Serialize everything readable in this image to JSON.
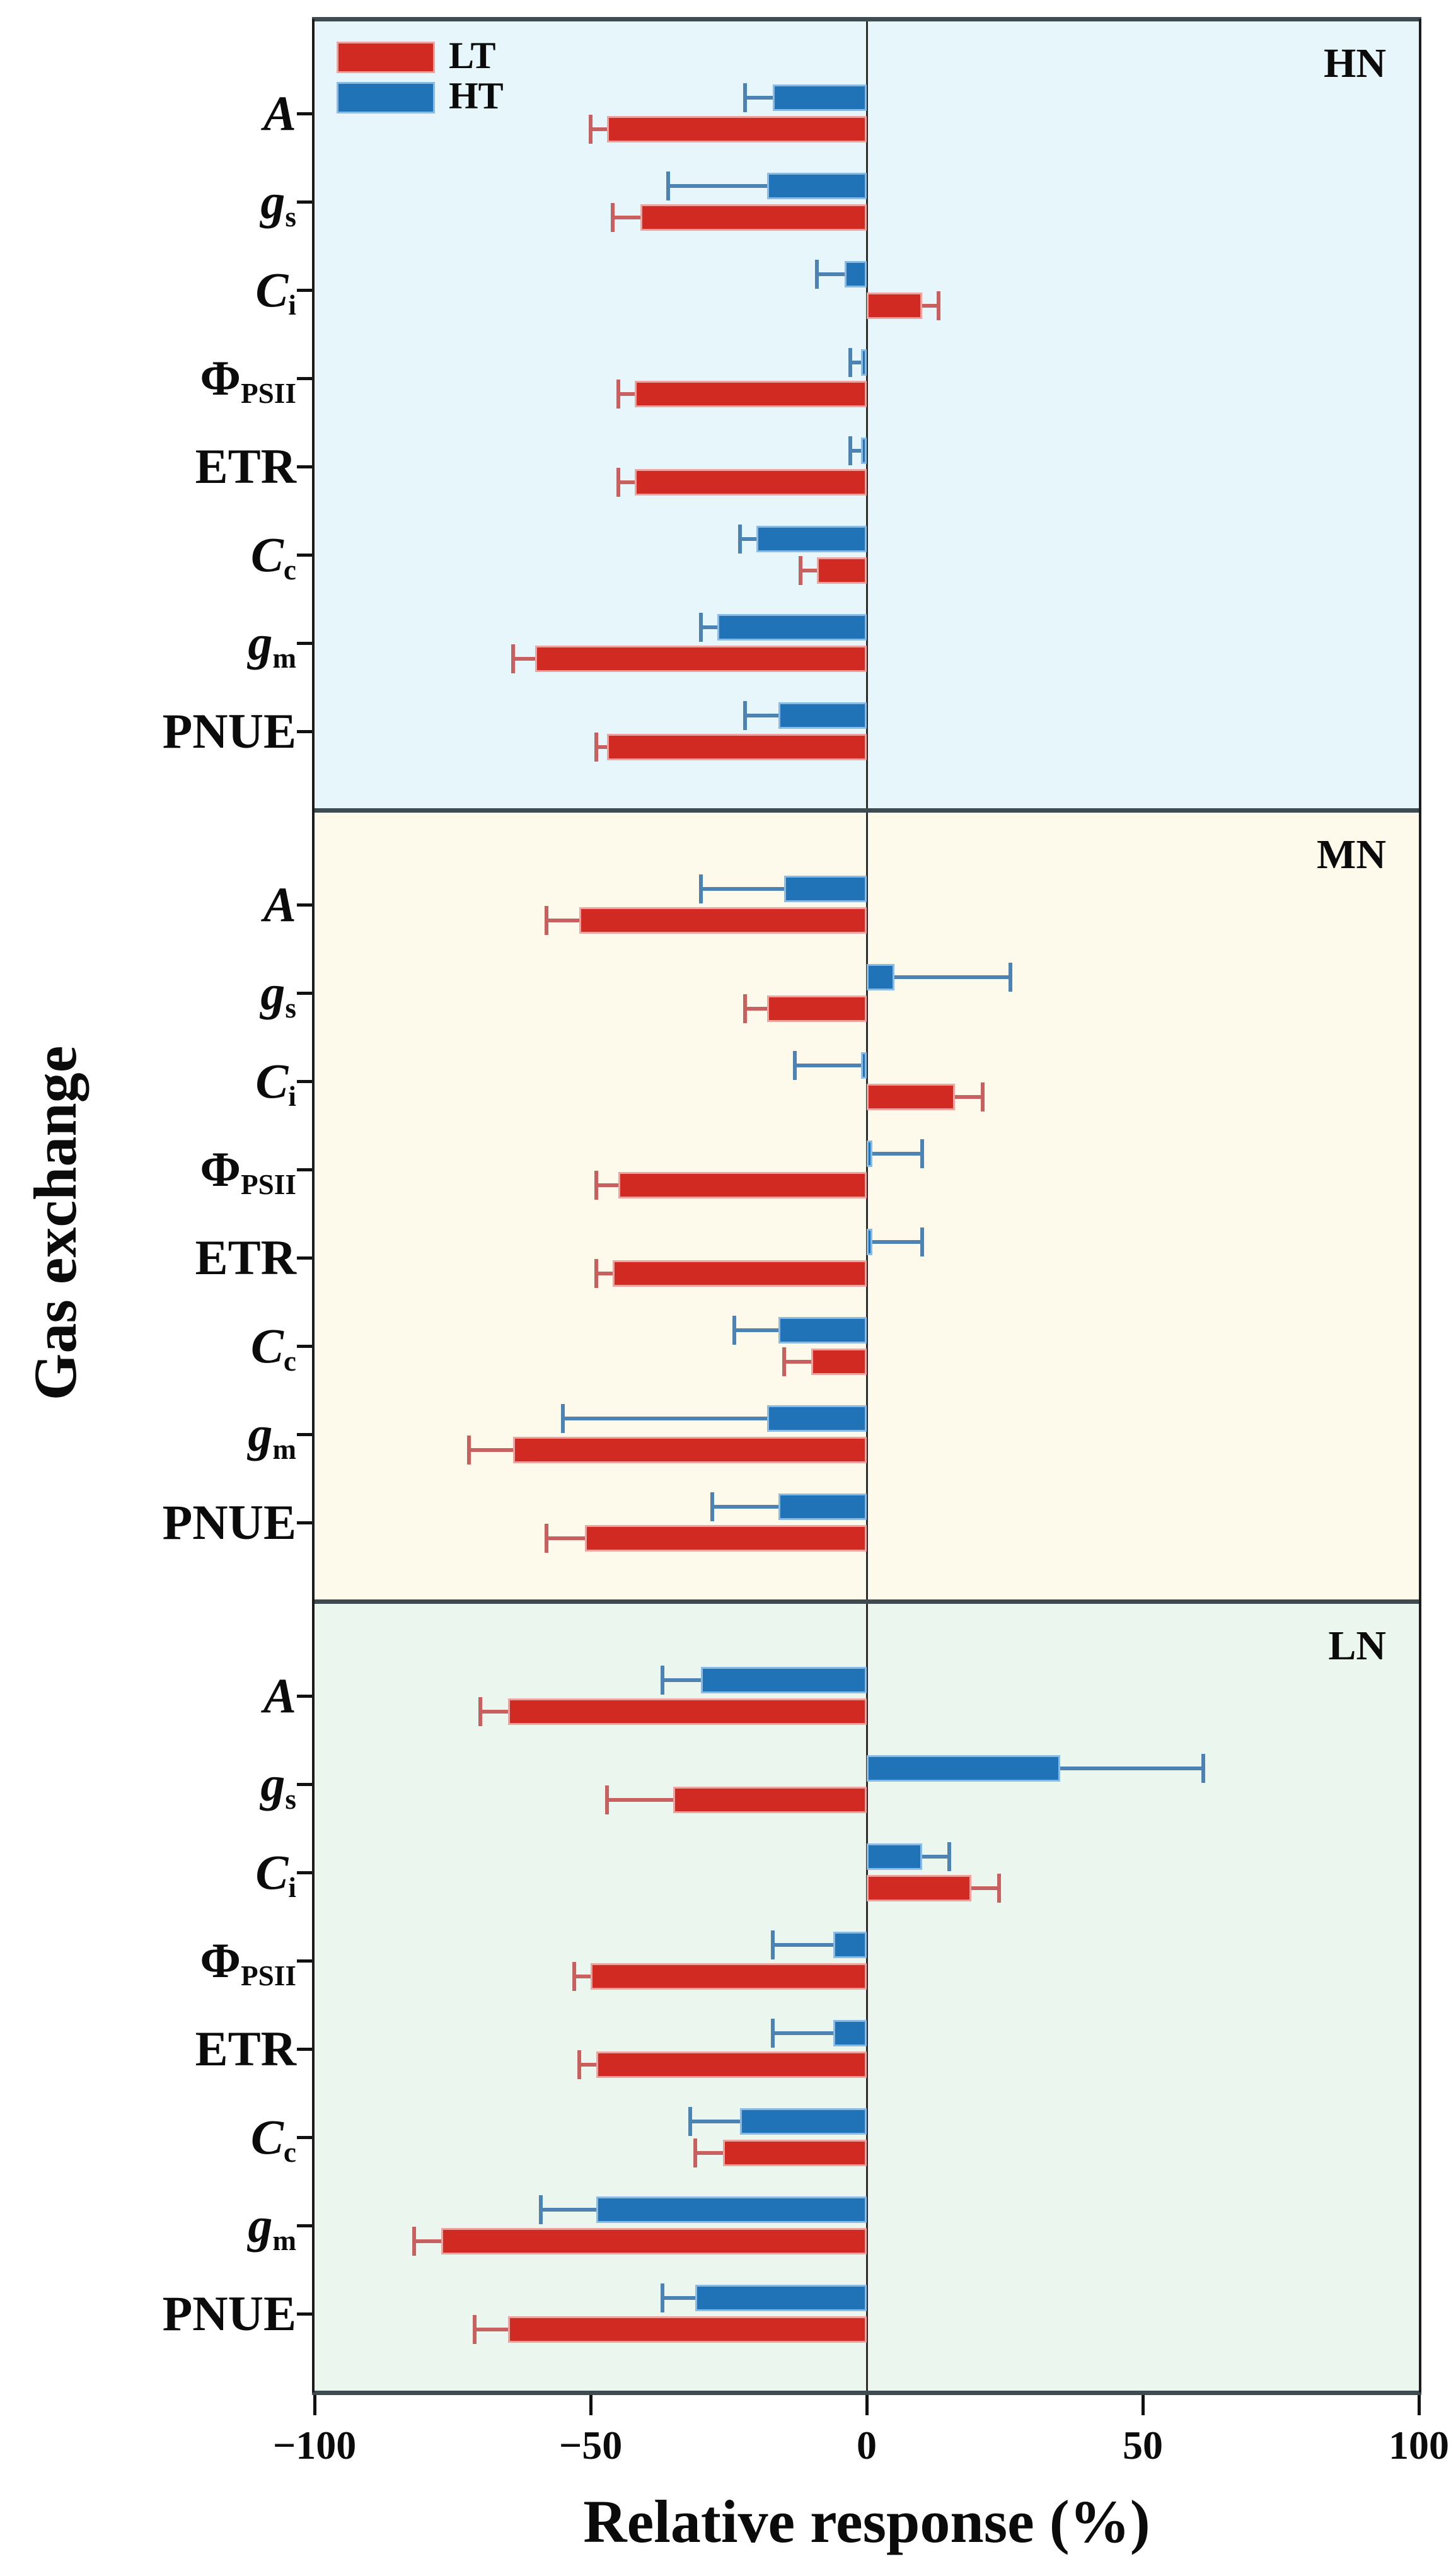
{
  "figure": {
    "x_axis_title": "Relative response (%)",
    "y_axis_title": "Gas exchange"
  },
  "chart_data": {
    "type": "bar",
    "orientation": "horizontal",
    "title": "",
    "xlabel": "Relative response (%)",
    "ylabel": "Gas exchange",
    "xlim": [
      -100,
      100
    ],
    "x_ticks": [
      -100,
      -50,
      0,
      50,
      100
    ],
    "x_tick_labels": [
      "−100",
      "−50",
      "0",
      "50",
      "100"
    ],
    "grid": false,
    "error_bars": "one-sided outward with caps",
    "legend": {
      "position": "top-left-of-first-panel",
      "entries": [
        {
          "label": "LT",
          "color": "#d02a22"
        },
        {
          "label": "HT",
          "color": "#2173b8"
        }
      ]
    },
    "colors": {
      "LT": "#d02a22",
      "HT": "#2173b8",
      "LT_edge": "#f0a29e",
      "HT_edge": "#8abbe4",
      "LT_err": "#c96060",
      "HT_err": "#4d83b2",
      "axis_frame": "#3e4b50",
      "panel_border": "#1c1c1c",
      "zero_line": "#2d2d2d"
    },
    "categories": [
      {
        "key": "A",
        "parts": [
          {
            "text": "A",
            "style": "italic"
          }
        ]
      },
      {
        "key": "gs",
        "parts": [
          {
            "text": "g",
            "style": "italic"
          },
          {
            "text": "s",
            "style": "sub"
          }
        ]
      },
      {
        "key": "Ci",
        "parts": [
          {
            "text": "C",
            "style": "italic"
          },
          {
            "text": "i",
            "style": "sub"
          }
        ]
      },
      {
        "key": "PhiPSII",
        "parts": [
          {
            "text": "Φ",
            "style": "normal"
          },
          {
            "text": "PSII",
            "style": "sub"
          }
        ]
      },
      {
        "key": "ETR",
        "parts": [
          {
            "text": "ETR",
            "style": "normal"
          }
        ]
      },
      {
        "key": "Cc",
        "parts": [
          {
            "text": "C",
            "style": "italic"
          },
          {
            "text": "c",
            "style": "sub"
          }
        ]
      },
      {
        "key": "gm",
        "parts": [
          {
            "text": "g",
            "style": "italic"
          },
          {
            "text": "m",
            "style": "sub"
          }
        ]
      },
      {
        "key": "PNUE",
        "parts": [
          {
            "text": "PNUE",
            "style": "normal"
          }
        ]
      }
    ],
    "panels": [
      {
        "label": "HN",
        "background": "#e7f6fa",
        "series": [
          {
            "name": "LT",
            "values": [
              -47,
              -41,
              10,
              -42,
              -42,
              -9,
              -60,
              -47
            ],
            "errors": [
              3,
              5,
              3,
              3,
              3,
              3,
              4,
              2
            ]
          },
          {
            "name": "HT",
            "values": [
              -17,
              -18,
              -4,
              -1,
              -1,
              -20,
              -27,
              -16
            ],
            "errors": [
              5,
              18,
              5,
              2,
              2,
              3,
              3,
              6
            ]
          }
        ]
      },
      {
        "label": "MN",
        "background": "#fdfaec",
        "series": [
          {
            "name": "LT",
            "values": [
              -52,
              -18,
              16,
              -45,
              -46,
              -10,
              -64,
              -51
            ],
            "errors": [
              6,
              4,
              5,
              4,
              3,
              5,
              8,
              7
            ]
          },
          {
            "name": "HT",
            "values": [
              -15,
              5,
              -1,
              1,
              1,
              -16,
              -18,
              -16
            ],
            "errors": [
              15,
              21,
              12,
              9,
              9,
              8,
              37,
              12
            ]
          }
        ]
      },
      {
        "label": "LN",
        "background": "#eaf6ee",
        "series": [
          {
            "name": "LT",
            "values": [
              -65,
              -35,
              19,
              -50,
              -49,
              -26,
              -77,
              -65
            ],
            "errors": [
              5,
              12,
              5,
              3,
              3,
              5,
              5,
              6
            ]
          },
          {
            "name": "HT",
            "values": [
              -30,
              35,
              10,
              -6,
              -6,
              -23,
              -49,
              -31
            ],
            "errors": [
              7,
              26,
              5,
              11,
              11,
              9,
              10,
              6
            ]
          }
        ]
      }
    ]
  }
}
